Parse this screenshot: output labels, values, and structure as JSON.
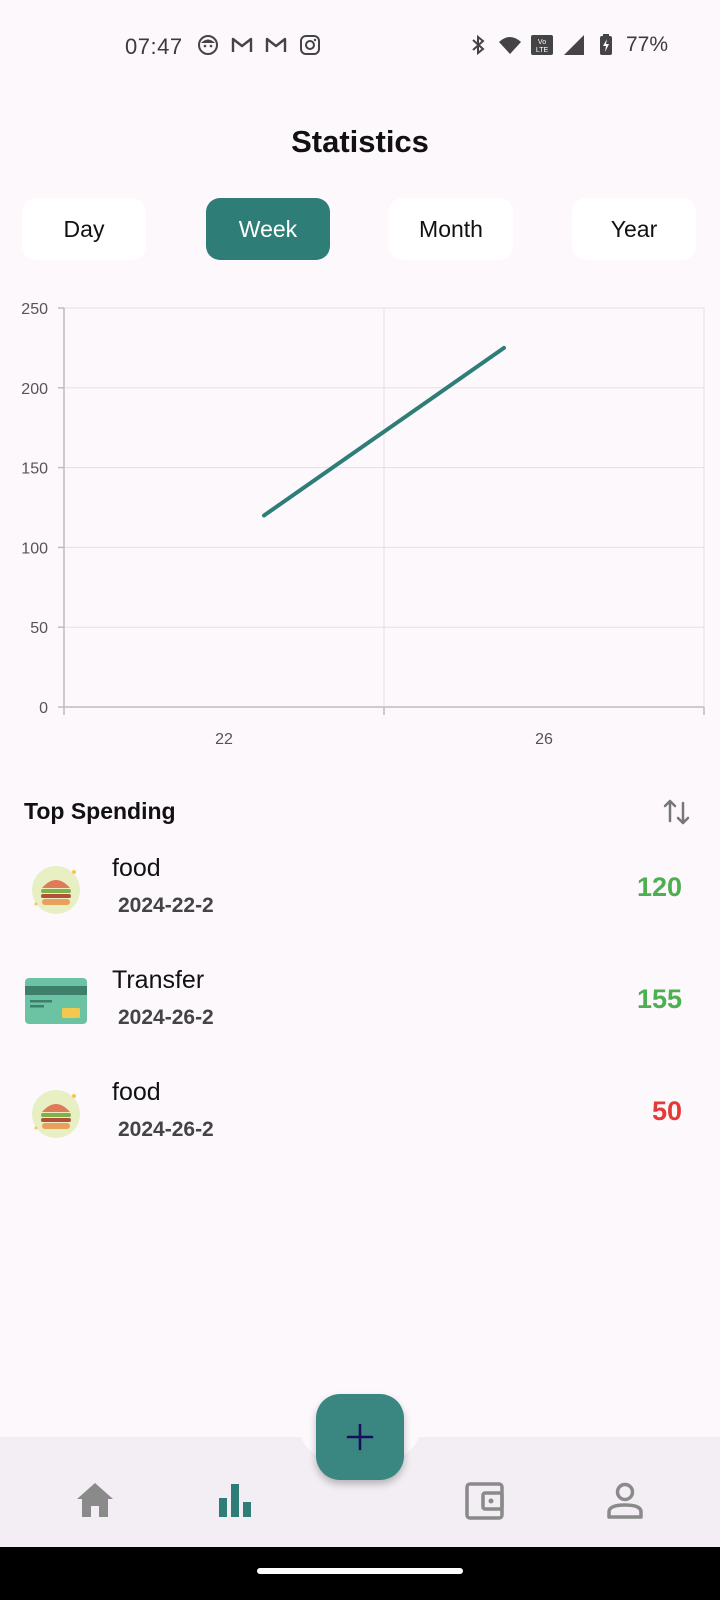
{
  "status_bar": {
    "time": "07:47",
    "battery": "77%",
    "left_icons": [
      "face-icon",
      "gmail-icon",
      "gmail-icon",
      "instagram-icon"
    ],
    "right_icons": [
      "bluetooth-icon",
      "wifi-icon",
      "volte-icon",
      "signal-icon",
      "battery-charging-icon"
    ]
  },
  "page": {
    "title": "Statistics"
  },
  "tabs": [
    {
      "label": "Day",
      "active": false
    },
    {
      "label": "Week",
      "active": true
    },
    {
      "label": "Month",
      "active": false
    },
    {
      "label": "Year",
      "active": false
    }
  ],
  "chart_data": {
    "type": "line",
    "x_ticks": [
      "22",
      "26"
    ],
    "y_ticks": [
      "0",
      "50",
      "100",
      "150",
      "200",
      "250"
    ],
    "ylim": [
      0,
      250
    ],
    "xlim": [
      20,
      28
    ],
    "grid": true,
    "series": [
      {
        "x": [
          22.5,
          25.5
        ],
        "y": [
          120,
          225
        ],
        "color": "#2e7d77"
      }
    ]
  },
  "top_spending": {
    "title": "Top Spending",
    "items": [
      {
        "name": "food",
        "date": "2024-22-2",
        "amount": "120",
        "amount_color": "#4caf50",
        "icon": "burger-icon"
      },
      {
        "name": "Transfer",
        "date": "2024-26-2",
        "amount": "155",
        "amount_color": "#4caf50",
        "icon": "credit-card-icon"
      },
      {
        "name": "food",
        "date": "2024-26-2",
        "amount": "50",
        "amount_color": "#e53935",
        "icon": "burger-icon"
      }
    ]
  },
  "colors": {
    "accent": "#2e7d77",
    "fab": "#3a8781",
    "income": "#4caf50",
    "expense": "#e53935"
  },
  "nav": {
    "items": [
      {
        "icon": "home-icon",
        "active": false
      },
      {
        "icon": "bar-chart-icon",
        "active": true
      },
      {
        "icon": "wallet-icon",
        "active": false
      },
      {
        "icon": "profile-icon",
        "active": false
      }
    ],
    "fab_icon": "plus-icon"
  }
}
